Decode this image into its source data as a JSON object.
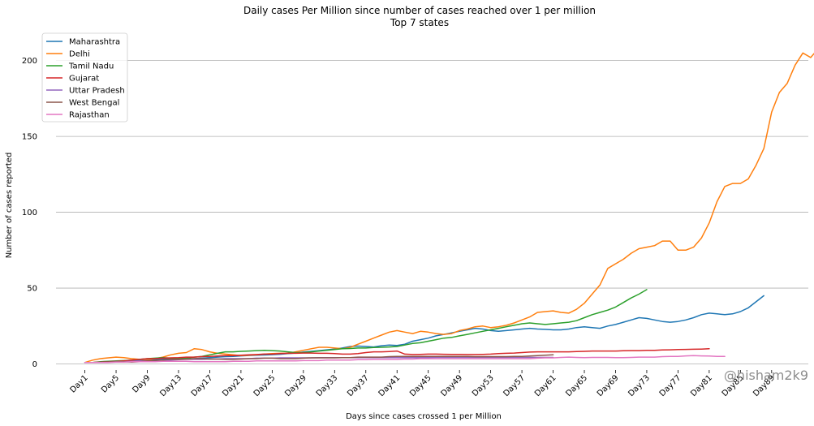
{
  "chart_data": {
    "type": "line",
    "title": "Daily cases Per Million since number of cases reached over 1 per million",
    "subtitle": "Top 7 states",
    "xlabel": "Days since cases crossed 1 per Million",
    "ylabel": "Number of cases reported",
    "ylim": [
      -4,
      218
    ],
    "xlim": [
      -3.7,
      92.7
    ],
    "yticks": [
      0,
      50,
      100,
      150,
      200
    ],
    "xticks": [
      "Day1",
      "Day5",
      "Day9",
      "Day13",
      "Day17",
      "Day21",
      "Day25",
      "Day29",
      "Day33",
      "Day37",
      "Day41",
      "Day45",
      "Day49",
      "Day53",
      "Day57",
      "Day61",
      "Day65",
      "Day69",
      "Day73",
      "Day77",
      "Day81",
      "Day85",
      "Day89"
    ],
    "grid": "horizontal",
    "legend_position": "top-left",
    "watermark": "@hisham2k9",
    "series": [
      {
        "name": "Maharashtra",
        "color": "#1f77b4",
        "values": [
          1,
          1,
          1,
          1.2,
          1.5,
          1.8,
          2,
          2.3,
          2.6,
          2.9,
          3.2,
          3.5,
          3.4,
          3.3,
          3.5,
          3.8,
          4.2,
          4.5,
          4.8,
          5,
          5.3,
          5.6,
          5.8,
          5.9,
          6.1,
          6.4,
          6.8,
          7.2,
          7.8,
          8.3,
          8.8,
          9.3,
          9.8,
          10.5,
          11.5,
          11.8,
          11.5,
          11.2,
          12,
          12.5,
          12.2,
          13,
          15,
          16,
          17,
          18.5,
          19.5,
          20.5,
          21.5,
          22.5,
          23.5,
          23,
          22,
          21.5,
          22,
          22.5,
          23,
          23.5,
          23,
          22.8,
          22.5,
          22.5,
          23,
          24,
          24.5,
          24,
          23.5,
          25,
          26,
          27.5,
          29,
          30.5,
          30,
          29,
          28,
          27.5,
          28,
          29,
          30.5,
          32.5,
          33.5,
          33,
          32.5,
          33,
          34.5,
          37,
          41,
          45
        ]
      },
      {
        "name": "Delhi",
        "color": "#ff7f0e",
        "values": [
          1,
          2.5,
          3.5,
          4,
          4.5,
          4.2,
          3.5,
          3,
          2.8,
          3.5,
          4.5,
          6,
          7,
          7.5,
          10,
          9.5,
          8,
          7,
          6.5,
          6,
          5.5,
          5.8,
          6,
          6.5,
          6.8,
          7,
          7,
          8,
          9,
          10,
          11,
          11,
          10.5,
          10,
          11,
          13,
          15,
          17,
          19,
          21,
          22,
          21,
          20,
          21.5,
          21,
          20,
          19.5,
          20,
          22,
          23,
          24.5,
          25,
          24,
          24.5,
          25.5,
          27,
          29,
          31,
          34,
          34.5,
          35,
          34,
          33.5,
          36,
          40,
          46,
          52,
          63,
          66,
          69,
          73,
          76,
          77,
          78,
          81,
          81,
          75,
          75,
          77,
          83,
          93,
          107,
          117,
          119,
          119,
          122,
          131,
          142,
          166,
          179,
          185,
          197,
          205,
          202,
          208,
          208,
          196
        ]
      },
      {
        "name": "Tamil Nadu",
        "color": "#2ca02c",
        "values": [
          1,
          1,
          1.5,
          1.8,
          2,
          2.2,
          2.5,
          3,
          3.5,
          3.8,
          4.2,
          3.8,
          3.5,
          3.8,
          4.5,
          5,
          6,
          7,
          8,
          8,
          8.3,
          8.5,
          8.8,
          9,
          8.8,
          8.5,
          8,
          7.5,
          7.5,
          8,
          8.5,
          9,
          9.5,
          10,
          10.2,
          10.5,
          10.5,
          10.8,
          11,
          11.2,
          11.5,
          12.5,
          13.5,
          14,
          15,
          16,
          17,
          17.5,
          18.5,
          19.5,
          20.5,
          21.5,
          22.5,
          23.5,
          24.5,
          25.5,
          26.5,
          27,
          26.5,
          26,
          26.5,
          27,
          27.5,
          28.5,
          30.5,
          32.5,
          34,
          35.5,
          37.5,
          40.5,
          43.5,
          46,
          49
        ]
      },
      {
        "name": "Gujarat",
        "color": "#d62728",
        "values": [
          1,
          1,
          1.2,
          1.5,
          1.8,
          2,
          2.5,
          3,
          3.5,
          3.5,
          3.8,
          4,
          4.2,
          4.5,
          4.5,
          4.8,
          5,
          5.2,
          5.5,
          5.5,
          5.8,
          6,
          6.2,
          6.5,
          6.5,
          6.8,
          7,
          7,
          7.2,
          7.2,
          7,
          7,
          6.8,
          6.5,
          6.5,
          6.8,
          7.5,
          8,
          8,
          8.2,
          8.5,
          6.5,
          6.2,
          6.3,
          6.5,
          6.5,
          6.4,
          6.3,
          6.3,
          6.2,
          6.2,
          6.3,
          6.5,
          6.8,
          7,
          7.2,
          7.5,
          7.8,
          8,
          8,
          8,
          8,
          8,
          8.2,
          8.3,
          8.5,
          8.5,
          8.5,
          8.5,
          8.7,
          8.8,
          8.8,
          9,
          9,
          9.2,
          9.3,
          9.5,
          9.6,
          9.7,
          9.8,
          10
        ]
      },
      {
        "name": "Uttar Pradesh",
        "color": "#9467bd",
        "values": [
          1,
          1,
          1,
          1.2,
          1.2,
          1.5,
          1.8,
          2,
          2.2,
          2.2,
          2.5,
          2.5,
          2.8,
          3,
          3,
          3,
          3.2,
          3.2,
          3.5,
          3.5,
          3.5,
          3.5,
          3.8,
          3.8,
          3.8,
          4,
          4,
          4,
          4,
          4,
          4.2,
          4.2,
          4.2,
          4.2,
          4.2,
          4.2,
          4.2,
          4.2,
          4.2,
          4.2,
          4.2,
          4.2,
          4.2,
          4.2,
          4.2,
          4.3,
          4.3,
          4.3,
          4.3,
          4.3,
          4.3,
          4.3,
          4.3,
          4.3,
          4.3,
          4.3,
          4.3,
          4.3,
          4.3,
          4.3,
          4.3
        ]
      },
      {
        "name": "West Bengal",
        "color": "#8c564b",
        "values": [
          1,
          1,
          1.2,
          1.5,
          1.8,
          1.5,
          1.2,
          1.5,
          2,
          2.2,
          2.5,
          3,
          3,
          3.2,
          3.5,
          3.5,
          3.2,
          3.2,
          3,
          3,
          3.2,
          3.5,
          3.5,
          3.8,
          3.8,
          3.5,
          3.5,
          3.5,
          3.8,
          4,
          4,
          4,
          4,
          4.2,
          4.2,
          4.5,
          4.5,
          4.5,
          4.5,
          4.8,
          5,
          5,
          5,
          5,
          5,
          5,
          5,
          5,
          5,
          5,
          4.8,
          4.8,
          4.8,
          4.8,
          4.8,
          5,
          5,
          5.2,
          5.5,
          5.8,
          6
        ]
      },
      {
        "name": "Rajasthan",
        "color": "#e377c2",
        "values": [
          1,
          1,
          1,
          1,
          1.2,
          1.2,
          1.5,
          1.5,
          1.5,
          1.5,
          1.8,
          1.8,
          1.8,
          1.8,
          1.5,
          1.5,
          1.5,
          1.5,
          1.5,
          1.8,
          1.8,
          1.8,
          2,
          2,
          2,
          2,
          2,
          2,
          2.2,
          2.2,
          2.2,
          2.5,
          2.5,
          2.5,
          2.5,
          2.8,
          2.8,
          3,
          3,
          3,
          3,
          3.2,
          3.2,
          3.5,
          3.5,
          3.5,
          3.5,
          3.5,
          3.5,
          3.5,
          3.5,
          3.5,
          3.5,
          3.5,
          3.5,
          3.5,
          3.5,
          3.5,
          3.8,
          4,
          4,
          4.3,
          4.5,
          4.3,
          4.2,
          4.3,
          4.3,
          4.3,
          4.2,
          4.2,
          4.3,
          4.5,
          4.5,
          4.5,
          4.8,
          5,
          5,
          5.3,
          5.5,
          5.3,
          5.2,
          5,
          5
        ]
      }
    ]
  }
}
